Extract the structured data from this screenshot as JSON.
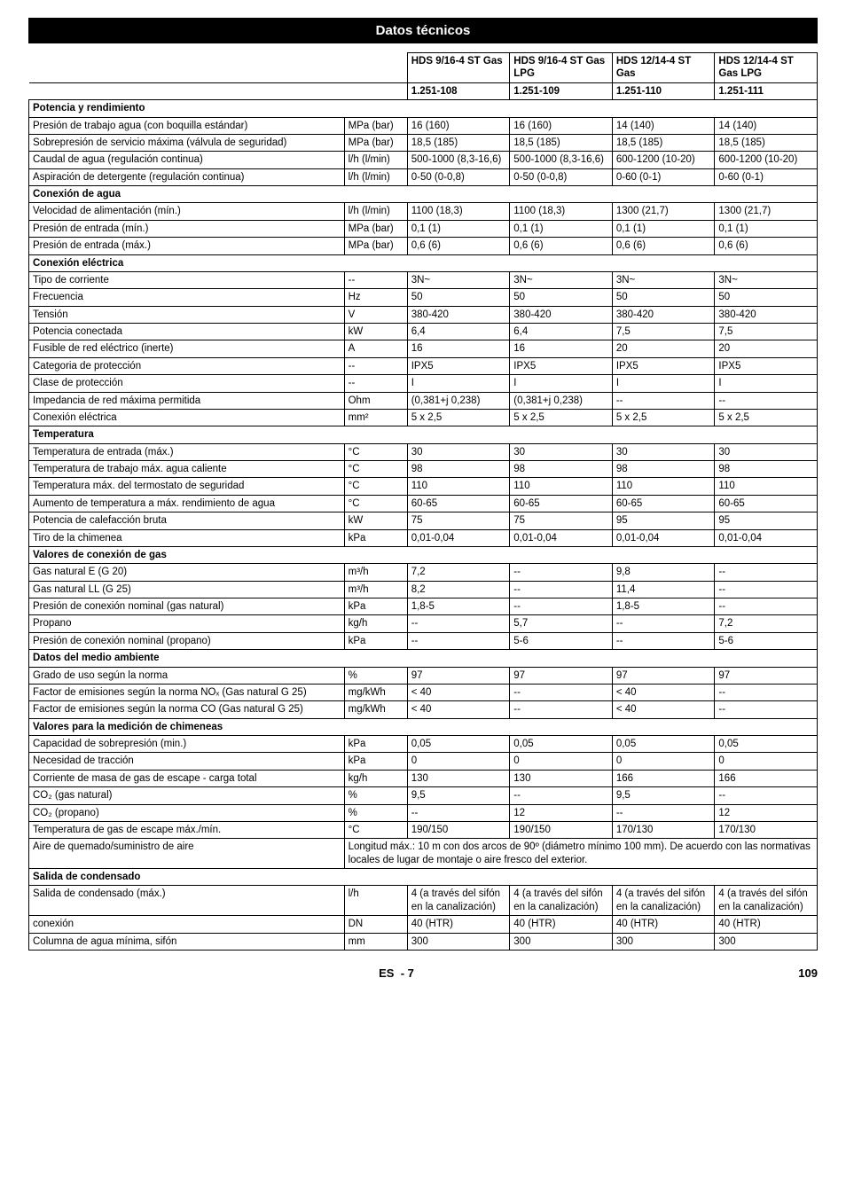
{
  "title": "Datos técnicos",
  "header": {
    "models": [
      "HDS 9/16-4 ST Gas",
      "HDS 9/16-4 ST Gas LPG",
      "HDS 12/14-4 ST Gas",
      "HDS 12/14-4 ST Gas LPG"
    ],
    "part_numbers": [
      "1.251-108",
      "1.251-109",
      "1.251-110",
      "1.251-111"
    ]
  },
  "sections": [
    {
      "title": "Potencia y rendimiento",
      "rows": [
        {
          "label": "Presión de trabajo agua (con boquilla estándar)",
          "unit": "MPa (bar)",
          "v": [
            "16 (160)",
            "16 (160)",
            "14 (140)",
            "14 (140)"
          ]
        },
        {
          "label": "Sobrepresión de servicio máxima (válvula de seguridad)",
          "unit": "MPa (bar)",
          "v": [
            "18,5 (185)",
            "18,5 (185)",
            "18,5 (185)",
            "18,5 (185)"
          ]
        },
        {
          "label": "Caudal de agua (regulación continua)",
          "unit": "l/h (l/min)",
          "v": [
            "500-1000 (8,3-16,6)",
            "500-1000 (8,3-16,6)",
            "600-1200 (10-20)",
            "600-1200 (10-20)"
          ]
        },
        {
          "label": "Aspiración de detergente (regulación continua)",
          "unit": "l/h (l/min)",
          "v": [
            "0-50 (0-0,8)",
            "0-50 (0-0,8)",
            "0-60 (0-1)",
            "0-60 (0-1)"
          ]
        }
      ]
    },
    {
      "title": "Conexión de agua",
      "rows": [
        {
          "label": "Velocidad de alimentación (mín.)",
          "unit": "l/h (l/min)",
          "v": [
            "1100 (18,3)",
            "1100 (18,3)",
            "1300 (21,7)",
            "1300 (21,7)"
          ]
        },
        {
          "label": "Presión de entrada (mín.)",
          "unit": "MPa (bar)",
          "v": [
            "0,1 (1)",
            "0,1 (1)",
            "0,1 (1)",
            "0,1 (1)"
          ]
        },
        {
          "label": "Presión de entrada (máx.)",
          "unit": "MPa (bar)",
          "v": [
            "0,6 (6)",
            "0,6 (6)",
            "0,6 (6)",
            "0,6 (6)"
          ]
        }
      ]
    },
    {
      "title": "Conexión eléctrica",
      "rows": [
        {
          "label": "Tipo de corriente",
          "unit": "--",
          "v": [
            "3N~",
            "3N~",
            "3N~",
            "3N~"
          ]
        },
        {
          "label": "Frecuencia",
          "unit": "Hz",
          "v": [
            "50",
            "50",
            "50",
            "50"
          ]
        },
        {
          "label": "Tensión",
          "unit": "V",
          "v": [
            "380-420",
            "380-420",
            "380-420",
            "380-420"
          ]
        },
        {
          "label": "Potencia conectada",
          "unit": "kW",
          "v": [
            "6,4",
            "6,4",
            "7,5",
            "7,5"
          ]
        },
        {
          "label": "Fusible de red eléctrico (inerte)",
          "unit": "A",
          "v": [
            "16",
            "16",
            "20",
            "20"
          ]
        },
        {
          "label": "Categoria de protección",
          "unit": "--",
          "v": [
            "IPX5",
            "IPX5",
            "IPX5",
            "IPX5"
          ]
        },
        {
          "label": "Clase de protección",
          "unit": "--",
          "v": [
            "I",
            "I",
            "I",
            "I"
          ]
        },
        {
          "label": "Impedancia de red máxima permitida",
          "unit": "Ohm",
          "v": [
            "(0,381+j 0,238)",
            "(0,381+j 0,238)",
            "--",
            "--"
          ]
        },
        {
          "label": "Conexión eléctrica",
          "unit": "mm²",
          "v": [
            "5 x 2,5",
            "5 x 2,5",
            "5 x 2,5",
            "5 x 2,5"
          ]
        }
      ]
    },
    {
      "title": "Temperatura",
      "rows": [
        {
          "label": "Temperatura de entrada (máx.)",
          "unit": "°C",
          "v": [
            "30",
            "30",
            "30",
            "30"
          ]
        },
        {
          "label": "Temperatura de trabajo máx. agua caliente",
          "unit": "°C",
          "v": [
            "98",
            "98",
            "98",
            "98"
          ]
        },
        {
          "label": "Temperatura máx. del termostato de seguridad",
          "unit": "°C",
          "v": [
            "110",
            "110",
            "110",
            "110"
          ]
        },
        {
          "label": "Aumento de temperatura a máx. rendimiento de agua",
          "unit": "°C",
          "v": [
            "60-65",
            "60-65",
            "60-65",
            "60-65"
          ]
        },
        {
          "label": "Potencia de calefacción bruta",
          "unit": "kW",
          "v": [
            "75",
            "75",
            "95",
            "95"
          ]
        },
        {
          "label": "Tiro de la chimenea",
          "unit": "kPa",
          "v": [
            "0,01-0,04",
            "0,01-0,04",
            "0,01-0,04",
            "0,01-0,04"
          ]
        }
      ]
    },
    {
      "title": "Valores de conexión de gas",
      "rows": [
        {
          "label": "Gas natural E (G 20)",
          "unit": "m³/h",
          "v": [
            "7,2",
            "--",
            "9,8",
            "--"
          ]
        },
        {
          "label": "Gas natural LL (G 25)",
          "unit": "m³/h",
          "v": [
            "8,2",
            "--",
            "11,4",
            "--"
          ]
        },
        {
          "label": "Presión de conexión nominal (gas natural)",
          "unit": "kPa",
          "v": [
            "1,8-5",
            "--",
            "1,8-5",
            "--"
          ]
        },
        {
          "label": "Propano",
          "unit": "kg/h",
          "v": [
            "--",
            "5,7",
            "--",
            "7,2"
          ]
        },
        {
          "label": "Presión de conexión nominal (propano)",
          "unit": "kPa",
          "v": [
            "--",
            "5-6",
            "--",
            "5-6"
          ]
        }
      ]
    },
    {
      "title": "Datos del medio ambiente",
      "rows": [
        {
          "label": "Grado de uso según la norma",
          "unit": "%",
          "v": [
            "97",
            "97",
            "97",
            "97"
          ]
        },
        {
          "label": "Factor de emisiones según la norma NOₓ (Gas natural G 25)",
          "unit": "mg/kWh",
          "v": [
            "< 40",
            "--",
            "< 40",
            "--"
          ]
        },
        {
          "label": "Factor de emisiones según la norma CO (Gas natural G 25)",
          "unit": "mg/kWh",
          "v": [
            "< 40",
            "--",
            "< 40",
            "--"
          ]
        }
      ]
    },
    {
      "title": "Valores para la medición de chimeneas",
      "rows": [
        {
          "label": "Capacidad de sobrepresión (min.)",
          "unit": "kPa",
          "v": [
            "0,05",
            "0,05",
            "0,05",
            "0,05"
          ]
        },
        {
          "label": "Necesidad de tracción",
          "unit": "kPa",
          "v": [
            "0",
            "0",
            "0",
            "0"
          ]
        },
        {
          "label": "Corriente de masa de gas de escape - carga total",
          "unit": "kg/h",
          "v": [
            "130",
            "130",
            "166",
            "166"
          ]
        },
        {
          "label": "CO₂ (gas natural)",
          "unit": "%",
          "v": [
            "9,5",
            "--",
            "9,5",
            "--"
          ]
        },
        {
          "label": "CO₂ (propano)",
          "unit": "%",
          "v": [
            "--",
            "12",
            "--",
            "12"
          ]
        },
        {
          "label": "Temperatura de gas de escape máx./mín.",
          "unit": "°C",
          "v": [
            "190/150",
            "190/150",
            "170/130",
            "170/130"
          ]
        },
        {
          "label": "Aire de quemado/suministro de aire",
          "unit": "__SPAN__",
          "v": [
            "Longitud máx.: 10 m con dos arcos de 90º (diámetro mínimo 100 mm). De acuerdo con las normativas locales de lugar de montaje o aire fresco del exterior."
          ]
        }
      ]
    },
    {
      "title": "Salida de condensado",
      "rows": [
        {
          "label": "Salida de condensado (máx.)",
          "unit": "l/h",
          "v": [
            "4 (a través del sifón en la canalización)",
            "4 (a través del sifón en la canalización)",
            "4 (a través del sifón en la canalización)",
            "4 (a través del sifón en la canalización)"
          ]
        },
        {
          "label": "conexión",
          "unit": "DN",
          "v": [
            "40 (HTR)",
            "40 (HTR)",
            "40 (HTR)",
            "40 (HTR)"
          ]
        },
        {
          "label": "Columna de agua mínima, sifón",
          "unit": "mm",
          "v": [
            "300",
            "300",
            "300",
            "300"
          ]
        }
      ]
    }
  ],
  "footer": {
    "lang": "ES",
    "page_inner": "- 7",
    "page_outer": "109"
  },
  "style": {
    "title_bg": "#000000",
    "title_fg": "#ffffff",
    "border_color": "#000000",
    "font_size_body": 11.5,
    "font_size_title": 15
  }
}
